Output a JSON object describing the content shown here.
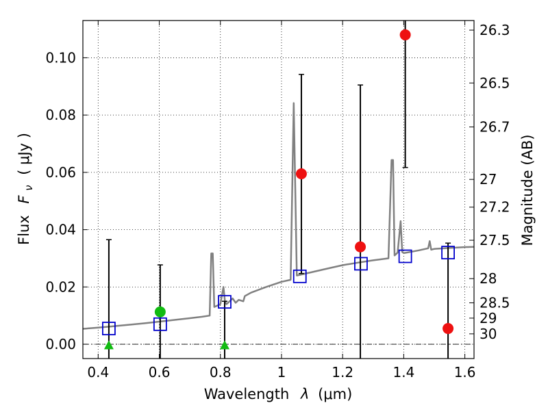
{
  "chart_data": {
    "type": "scatter",
    "title": "",
    "xlabel": "Wavelength",
    "xlabel_symbol": "λ",
    "xlabel_unit": "(μm)",
    "ylabel": "Flux",
    "ylabel_symbol": "F",
    "ylabel_symbol_sub": "ν",
    "ylabel_unit": "( μJy )",
    "y2label": "Magnitude (AB)",
    "xlim": [
      0.35,
      1.63
    ],
    "ylim": [
      -0.005,
      0.113
    ],
    "grid": true,
    "x_ticks": [
      {
        "value": 0.4,
        "label": "0.4"
      },
      {
        "value": 0.6,
        "label": "0.6"
      },
      {
        "value": 0.8,
        "label": "0.8"
      },
      {
        "value": 1.0,
        "label": "1"
      },
      {
        "value": 1.2,
        "label": "1.2"
      },
      {
        "value": 1.4,
        "label": "1.4"
      },
      {
        "value": 1.6,
        "label": "1.6"
      }
    ],
    "y_ticks": [
      {
        "value": 0.0,
        "label": "0.00"
      },
      {
        "value": 0.02,
        "label": "0.02"
      },
      {
        "value": 0.04,
        "label": "0.04"
      },
      {
        "value": 0.06,
        "label": "0.06"
      },
      {
        "value": 0.08,
        "label": "0.08"
      },
      {
        "value": 0.1,
        "label": "0.10"
      }
    ],
    "y2_ticks": [
      {
        "value": 26.3,
        "label": "26.3"
      },
      {
        "value": 26.5,
        "label": "26.5"
      },
      {
        "value": 26.7,
        "label": "26.7"
      },
      {
        "value": 27.0,
        "label": "27"
      },
      {
        "value": 27.2,
        "label": "27.2"
      },
      {
        "value": 27.5,
        "label": "27.5"
      },
      {
        "value": 28.0,
        "label": "28"
      },
      {
        "value": 28.5,
        "label": "28.5"
      },
      {
        "value": 29.0,
        "label": "29"
      },
      {
        "value": 30.0,
        "label": "30"
      }
    ],
    "series": [
      {
        "style": "line",
        "color": "#808080",
        "x": [
          0.35,
          0.4,
          0.45,
          0.5,
          0.55,
          0.6,
          0.65,
          0.7,
          0.74,
          0.765,
          0.77,
          0.775,
          0.78,
          0.8,
          0.81,
          0.815,
          0.82,
          0.84,
          0.85,
          0.86,
          0.875,
          0.88,
          0.9,
          0.95,
          1.0,
          1.03,
          1.04,
          1.045,
          1.05,
          1.1,
          1.15,
          1.2,
          1.25,
          1.3,
          1.35,
          1.36,
          1.365,
          1.37,
          1.38,
          1.39,
          1.395,
          1.4,
          1.42,
          1.45,
          1.48,
          1.485,
          1.49,
          1.5,
          1.55,
          1.6,
          1.63
        ],
        "y": [
          0.0054,
          0.0058,
          0.0063,
          0.0068,
          0.0073,
          0.0079,
          0.0085,
          0.0091,
          0.0096,
          0.01,
          0.0317,
          0.0317,
          0.013,
          0.014,
          0.02,
          0.015,
          0.014,
          0.016,
          0.0145,
          0.0155,
          0.015,
          0.0168,
          0.018,
          0.02,
          0.0218,
          0.0225,
          0.0842,
          0.055,
          0.024,
          0.0252,
          0.0264,
          0.0276,
          0.0285,
          0.0293,
          0.03,
          0.0643,
          0.0643,
          0.031,
          0.032,
          0.043,
          0.0322,
          0.0318,
          0.0322,
          0.0328,
          0.0335,
          0.036,
          0.033,
          0.0333,
          0.0336,
          0.0339,
          0.034
        ]
      },
      {
        "style": "open-square",
        "color": "#0000cc",
        "x": [
          0.435,
          0.603,
          0.814,
          1.06,
          1.26,
          1.405,
          1.545
        ],
        "y": [
          0.0055,
          0.007,
          0.0148,
          0.0237,
          0.0281,
          0.0307,
          0.032
        ]
      },
      {
        "style": "filled-circle",
        "color": "#ee1111",
        "x": [
          1.065,
          1.258,
          1.405,
          1.545
        ],
        "y": [
          0.0595,
          0.034,
          0.108,
          0.0055
        ]
      },
      {
        "style": "filled-circle",
        "color": "#11bb11",
        "x": [
          0.603
        ],
        "y": [
          0.0113
        ]
      },
      {
        "style": "triangle-up",
        "color": "#11bb11",
        "x": [
          0.435,
          0.814
        ],
        "y": [
          -0.0003,
          -0.0003
        ]
      }
    ],
    "error_bars": [
      {
        "x": 0.435,
        "low": -0.0055,
        "high": 0.0365
      },
      {
        "x": 0.603,
        "low": -0.0055,
        "high": 0.0277
      },
      {
        "x": 0.814,
        "low": -0.0055,
        "high": 0.015
      },
      {
        "x": 1.065,
        "low": 0.0247,
        "high": 0.0942
      },
      {
        "x": 1.258,
        "low": -0.0055,
        "high": 0.0905
      },
      {
        "x": 1.405,
        "low": 0.0617,
        "high": 0.114
      },
      {
        "x": 1.545,
        "low": -0.0055,
        "high": 0.0353
      }
    ]
  }
}
